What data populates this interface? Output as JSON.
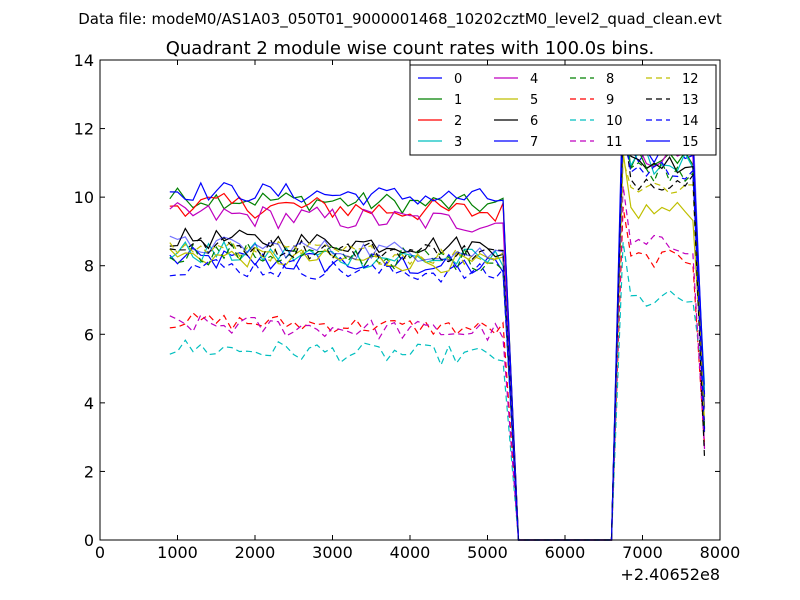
{
  "chart_data": {
    "type": "line",
    "suptitle": "Data file: modeM0/AS1A03_050T01_9000001468_10202cztM0_level2_quad_clean.evt",
    "title": "Quadrant 2 module wise count rates with 100.0s bins.",
    "xlabel": "",
    "ylabel": "",
    "x_offset_label": "+2.40652e8",
    "xlim": [
      0,
      8000
    ],
    "ylim": [
      0,
      14
    ],
    "x_ticks": [
      0,
      1000,
      2000,
      3000,
      4000,
      5000,
      6000,
      7000,
      8000
    ],
    "y_ticks": [
      0,
      2,
      4,
      6,
      8,
      10,
      12,
      14
    ],
    "x_tick_labels": [
      "0",
      "1000",
      "2000",
      "3000",
      "4000",
      "5000",
      "6000",
      "7000",
      "8000"
    ],
    "y_tick_labels": [
      "0",
      "2",
      "4",
      "6",
      "8",
      "10",
      "12",
      "14"
    ],
    "legend_placement": "top-right",
    "series": [
      {
        "name": "0",
        "color": "#0000ff",
        "dash": "solid",
        "base": 8.2,
        "tail": 11.3,
        "jit": 0.35
      },
      {
        "name": "1",
        "color": "#008000",
        "dash": "solid",
        "base": 10.0,
        "tail": 11.1,
        "jit": 0.3
      },
      {
        "name": "2",
        "color": "#ff0000",
        "dash": "solid",
        "base": 9.8,
        "tail": 11.6,
        "jit": 0.35
      },
      {
        "name": "3",
        "color": "#00bfbf",
        "dash": "solid",
        "base": 8.4,
        "tail": 11.0,
        "jit": 0.35
      },
      {
        "name": "4",
        "color": "#bf00bf",
        "dash": "solid",
        "base": 9.5,
        "tail": 11.2,
        "jit": 0.35
      },
      {
        "name": "5",
        "color": "#bfbf00",
        "dash": "solid",
        "base": 8.3,
        "tail": 9.6,
        "jit": 0.3
      },
      {
        "name": "6",
        "color": "#000000",
        "dash": "solid",
        "base": 8.8,
        "tail": 11.0,
        "jit": 0.3
      },
      {
        "name": "7",
        "color": "#0000ff",
        "dash": "solid",
        "base": 10.2,
        "tail": 11.8,
        "jit": 0.3
      },
      {
        "name": "8",
        "color": "#008000",
        "dash": "dashed",
        "base": 8.4,
        "tail": 10.8,
        "jit": 0.35
      },
      {
        "name": "9",
        "color": "#ff0000",
        "dash": "dashed",
        "base": 6.4,
        "tail": 8.2,
        "jit": 0.25
      },
      {
        "name": "10",
        "color": "#00bfbf",
        "dash": "dashed",
        "base": 5.6,
        "tail": 7.0,
        "jit": 0.3
      },
      {
        "name": "11",
        "color": "#bf00bf",
        "dash": "dashed",
        "base": 6.3,
        "tail": 8.6,
        "jit": 0.3
      },
      {
        "name": "12",
        "color": "#bfbf00",
        "dash": "dashed",
        "base": 8.5,
        "tail": 10.3,
        "jit": 0.3
      },
      {
        "name": "13",
        "color": "#000000",
        "dash": "dashed",
        "base": 8.6,
        "tail": 10.5,
        "jit": 0.3
      },
      {
        "name": "14",
        "color": "#0000ff",
        "dash": "dashed",
        "base": 8.0,
        "tail": 10.8,
        "jit": 0.3
      },
      {
        "name": "15",
        "color": "#0000ff",
        "dash": "solid",
        "base": 8.6,
        "tail": 11.9,
        "jit": 0.3
      }
    ]
  }
}
